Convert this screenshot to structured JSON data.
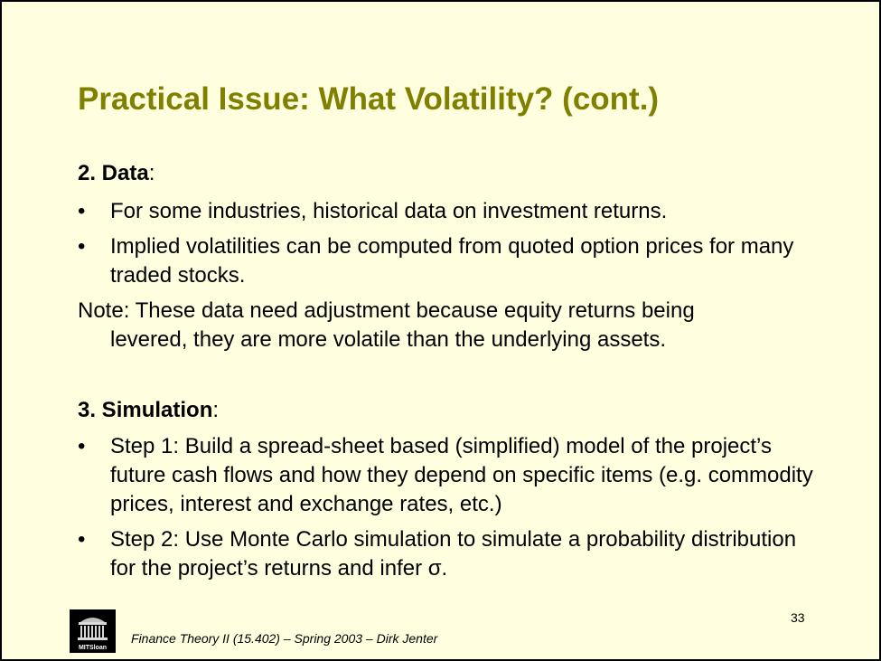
{
  "slide": {
    "title": "Practical Issue: What Volatility? (cont.)",
    "section2": {
      "heading": "2. Data",
      "colon": ":",
      "bullets": [
        "For some industries, historical data on investment returns.",
        "Implied volatilities can be computed from quoted option prices for many traded stocks."
      ],
      "note_line1": "Note: These data need adjustment because equity returns being",
      "note_line2": "levered, they are more volatile than the underlying assets."
    },
    "section3": {
      "heading": "3. Simulation",
      "colon": ":",
      "bullets": [
        "Step 1: Build a spread-sheet based (simplified) model of the project’s future cash flows and how they depend on specific items (e.g. commodity prices, interest and exchange rates, etc.)",
        "Step 2: Use Monte Carlo simulation to simulate a probability distribution for the project’s returns and infer σ."
      ]
    },
    "bullet_symbol": "•",
    "page_number": "33",
    "footer": "Finance Theory II (15.402) – Spring 2003 – Dirk Jenter",
    "logo_text": "MITSloan",
    "title_color": "#808000",
    "background_color": "#ffffe0"
  }
}
